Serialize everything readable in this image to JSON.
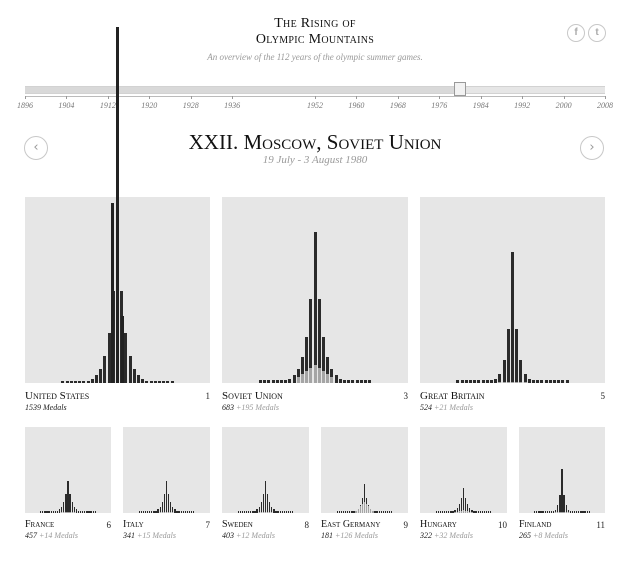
{
  "header": {
    "title_line1": "The Rising of",
    "title_line2": "Olympic Mountains",
    "subtitle": "An overview of the 112 years of the olympic summer games."
  },
  "social": {
    "facebook_label": "f",
    "twitter_label": "t",
    "facebook_icon": "facebook-icon",
    "twitter_icon": "twitter-icon"
  },
  "timeline": {
    "years": [
      "1896",
      "1904",
      "1912",
      "1920",
      "1928",
      "1936",
      "1952",
      "1960",
      "1968",
      "1976",
      "1984",
      "1992",
      "2000",
      "2008"
    ],
    "min_year": 1896,
    "max_year": 2008,
    "selected_year": 1980
  },
  "nav": {
    "prev_icon": "chevron-left-icon",
    "next_icon": "chevron-right-icon",
    "prev_label": "‹",
    "next_label": "›"
  },
  "games": {
    "title": "XXII. Moscow, Soviet Union",
    "dates": "19 July - 3 August 1980"
  },
  "colors": {
    "panel_bg": "#e6e6e6",
    "bar_dark": "#2b2b2b",
    "bar_light": "#a5a5a5",
    "accent_gray": "#999999"
  },
  "chart_data": {
    "type": "bar",
    "description_x": "olympic games 1896-2008",
    "selected_game_year": 1980,
    "countries": [
      {
        "name": "United States",
        "rank": "1",
        "medals": "1539 Medals",
        "plus": "",
        "peak": 1.0,
        "width": 0.1,
        "current": 0.0
      },
      {
        "name": "Soviet Union",
        "rank": "3",
        "medals": "683",
        "plus": "+195 Medals",
        "peak": 0.55,
        "width": 0.09,
        "current": 0.3
      },
      {
        "name": "Great Britain",
        "rank": "5",
        "medals": "524",
        "plus": "+21 Medals",
        "peak": 0.48,
        "width": 0.06,
        "current": 0.02
      },
      {
        "name": "France",
        "rank": "6",
        "medals": "457",
        "plus": "+14 Medals",
        "peak": 0.25,
        "width": 0.1,
        "current": 0.05
      },
      {
        "name": "Italy",
        "rank": "7",
        "medals": "341",
        "plus": "+15 Medals",
        "peak": 0.25,
        "width": 0.1,
        "current": 0.05
      },
      {
        "name": "Sweden",
        "rank": "8",
        "medals": "403",
        "plus": "+12 Medals",
        "peak": 0.25,
        "width": 0.1,
        "current": 0.05
      },
      {
        "name": "East Germany",
        "rank": "9",
        "medals": "181",
        "plus": "+126 Medals",
        "peak": 0.23,
        "width": 0.08,
        "current": 0.4
      },
      {
        "name": "Hungary",
        "rank": "10",
        "medals": "322",
        "plus": "+32 Medals",
        "peak": 0.2,
        "width": 0.1,
        "current": 0.1
      },
      {
        "name": "Finland",
        "rank": "11",
        "medals": "265",
        "plus": "+8 Medals",
        "peak": 0.35,
        "width": 0.06,
        "current": 0.05
      }
    ],
    "us_spike": {
      "note": "tall bars for the United States rise above the panel",
      "peak_value": 1.0
    }
  }
}
